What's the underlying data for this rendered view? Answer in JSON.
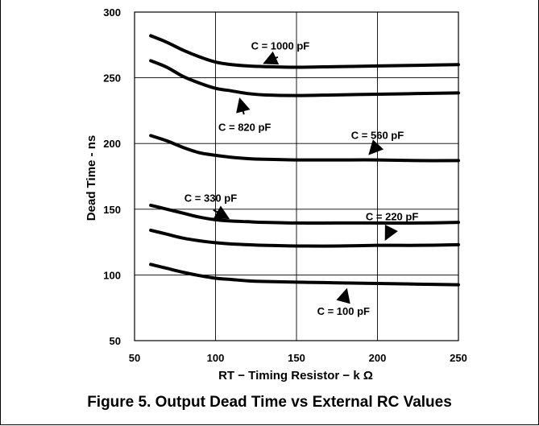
{
  "figure": {
    "caption": "Figure 5. Output Dead Time vs External RC Values"
  },
  "chart_data": {
    "type": "line",
    "xlabel": "RT − Timing Resistor − k Ω",
    "ylabel": "Dead Time - ns",
    "xlim": [
      50,
      250
    ],
    "ylim": [
      50,
      300
    ],
    "xticks": [
      50,
      100,
      150,
      200,
      250
    ],
    "yticks": [
      50,
      100,
      150,
      200,
      250,
      300
    ],
    "grid": true,
    "series": [
      {
        "name": "C = 1000 pF",
        "x": [
          60,
          70,
          80,
          90,
          100,
          110,
          120,
          130,
          150,
          175,
          200,
          225,
          250
        ],
        "y": [
          282,
          277,
          271,
          266,
          262,
          260,
          259,
          258.5,
          258,
          258.5,
          259,
          259.5,
          260
        ]
      },
      {
        "name": "C = 820 pF",
        "x": [
          60,
          70,
          80,
          90,
          100,
          110,
          120,
          130,
          150,
          175,
          200,
          225,
          250
        ],
        "y": [
          263,
          258,
          251,
          246,
          242,
          240,
          238,
          237,
          236.5,
          237,
          237.5,
          238,
          238.5
        ]
      },
      {
        "name": "C = 560 pF",
        "x": [
          60,
          70,
          80,
          90,
          100,
          110,
          120,
          130,
          150,
          175,
          200,
          225,
          250
        ],
        "y": [
          206,
          202,
          197,
          193,
          191,
          189.5,
          188.5,
          188,
          187.5,
          187.5,
          187.5,
          187,
          187
        ]
      },
      {
        "name": "C = 330 pF",
        "x": [
          60,
          70,
          80,
          90,
          100,
          110,
          120,
          130,
          150,
          175,
          200,
          225,
          250
        ],
        "y": [
          153,
          150,
          147,
          144,
          142,
          141,
          140.5,
          140,
          139.5,
          139.5,
          139.5,
          139.5,
          140
        ]
      },
      {
        "name": "C = 220 pF",
        "x": [
          60,
          70,
          80,
          90,
          100,
          110,
          120,
          130,
          150,
          175,
          200,
          225,
          250
        ],
        "y": [
          134,
          131,
          128,
          126,
          124.5,
          123.5,
          123,
          122.5,
          122,
          122,
          122.5,
          122.5,
          123
        ]
      },
      {
        "name": "C = 100 pF",
        "x": [
          60,
          70,
          80,
          90,
          100,
          110,
          120,
          130,
          150,
          175,
          200,
          225,
          250
        ],
        "y": [
          108,
          105,
          102,
          99.5,
          97.5,
          96.5,
          95.5,
          95,
          94.5,
          94,
          93.5,
          93,
          92.5
        ]
      }
    ],
    "annotations": [
      {
        "text": "C = 1000 pF",
        "ax": 140,
        "ay": 274,
        "x": 130,
        "y": 261
      },
      {
        "text": "C = 820 pF",
        "ax": 118,
        "ay": 212,
        "x": 115,
        "y": 234
      },
      {
        "text": "C = 560 pF",
        "ax": 200,
        "ay": 206,
        "x": 195,
        "y": 192
      },
      {
        "text": "C = 330 pF",
        "ax": 97,
        "ay": 158,
        "x": 108,
        "y": 143
      },
      {
        "text": "C = 220 pF",
        "ax": 209,
        "ay": 144,
        "x": 205,
        "y": 127
      },
      {
        "text": "C = 100 pF",
        "ax": 179,
        "ay": 72,
        "x": 181,
        "y": 89
      }
    ],
    "colors": {
      "line": "#000000",
      "grid": "#000000",
      "background": "#ffffff"
    }
  }
}
